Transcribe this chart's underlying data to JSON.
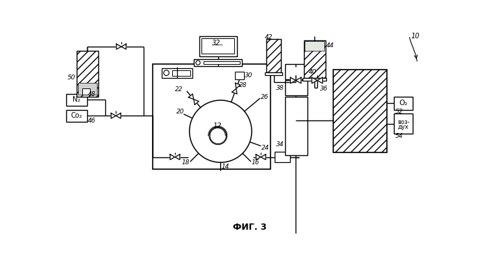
{
  "title": "ФИГ. 3",
  "label_10": "10",
  "label_12": "12",
  "label_14": "14",
  "label_16": "16",
  "label_18": "18",
  "label_20": "20",
  "label_22": "22",
  "label_24": "24",
  "label_26": "26",
  "label_28": "28",
  "label_30": "30",
  "label_32": "32",
  "label_34": "34",
  "label_36": "36",
  "label_38": "38",
  "label_40": "40",
  "label_42": "42",
  "label_44": "44",
  "label_46": "46",
  "label_48": "48",
  "label_50": "50",
  "label_52": "52",
  "label_54": "54",
  "text_N2": "N₂",
  "text_CO2": "Co₂",
  "text_O2": "O₂",
  "text_air": "воз-\nдух",
  "bg_color": "#ffffff"
}
